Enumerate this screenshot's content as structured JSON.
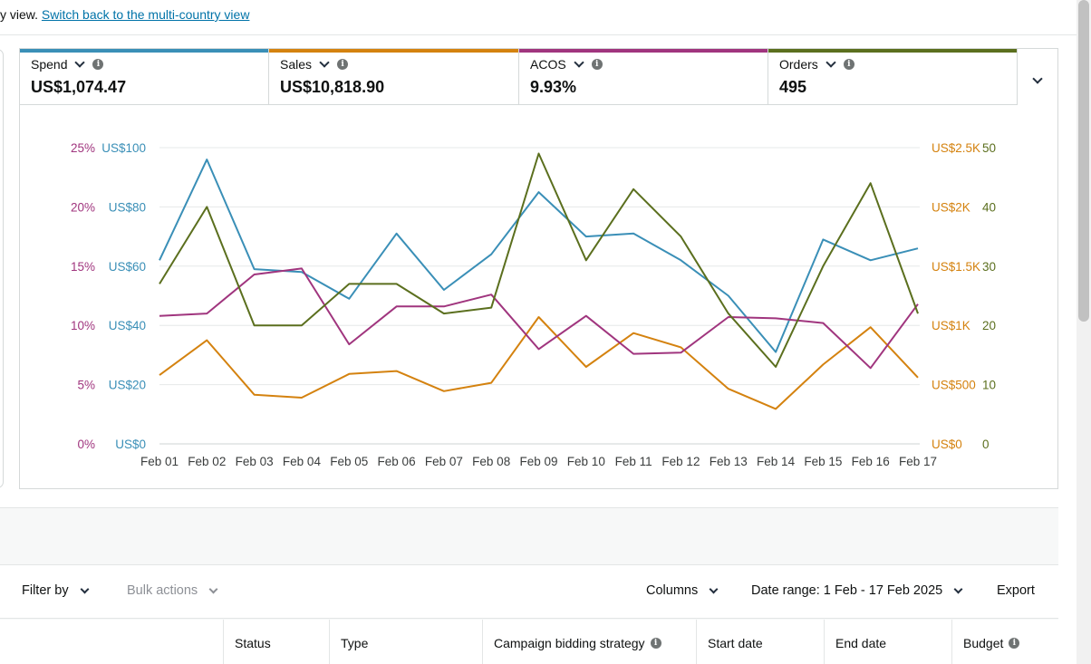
{
  "notice": {
    "prefix": "y view. ",
    "link": "Switch back to the multi-country view"
  },
  "metrics": [
    {
      "label": "Spend",
      "value": "US$1,074.47",
      "color": "#3a8fb7"
    },
    {
      "label": "Sales",
      "value": "US$10,818.90",
      "color": "#d4820f"
    },
    {
      "label": "ACOS",
      "value": "9.93%",
      "color": "#a0357e"
    },
    {
      "label": "Orders",
      "value": "495",
      "color": "#5b6f1e"
    }
  ],
  "chart_data": {
    "type": "line",
    "categories": [
      "Feb 01",
      "Feb 02",
      "Feb 03",
      "Feb 04",
      "Feb 05",
      "Feb 06",
      "Feb 07",
      "Feb 08",
      "Feb 09",
      "Feb 10",
      "Feb 11",
      "Feb 12",
      "Feb 13",
      "Feb 14",
      "Feb 15",
      "Feb 16",
      "Feb 17"
    ],
    "axes": {
      "acos": {
        "ticks": [
          "25%",
          "20%",
          "15%",
          "10%",
          "5%",
          "0%"
        ],
        "range": [
          0,
          25
        ],
        "color": "#a0357e",
        "side": "left"
      },
      "spend": {
        "ticks": [
          "US$100",
          "US$80",
          "US$60",
          "US$40",
          "US$20",
          "US$0"
        ],
        "range": [
          0,
          100
        ],
        "color": "#3a8fb7",
        "side": "left"
      },
      "sales": {
        "ticks": [
          "US$2.5K",
          "US$2K",
          "US$1.5K",
          "US$1K",
          "US$500",
          "US$0"
        ],
        "range": [
          0,
          2500
        ],
        "color": "#d4820f",
        "side": "right"
      },
      "orders": {
        "ticks": [
          "50",
          "40",
          "30",
          "20",
          "10",
          "0"
        ],
        "range": [
          0,
          50
        ],
        "color": "#5b6f1e",
        "side": "right"
      }
    },
    "series": [
      {
        "name": "Spend",
        "axis": "spend",
        "color": "#3a8fb7",
        "values": [
          62,
          96,
          59,
          58,
          49,
          71,
          52,
          64,
          85,
          70,
          71,
          62,
          50,
          31,
          69,
          62,
          66
        ]
      },
      {
        "name": "Sales",
        "axis": "sales",
        "color": "#d4820f",
        "values": [
          580,
          875,
          415,
          390,
          590,
          615,
          445,
          515,
          1070,
          650,
          935,
          815,
          465,
          295,
          670,
          985,
          560
        ]
      },
      {
        "name": "ACOS",
        "axis": "acos",
        "color": "#a0357e",
        "values": [
          10.8,
          11.0,
          14.3,
          14.8,
          8.4,
          11.6,
          11.6,
          12.6,
          8.0,
          10.8,
          7.6,
          7.7,
          10.7,
          10.6,
          10.2,
          6.4,
          11.8
        ]
      },
      {
        "name": "Orders",
        "axis": "orders",
        "color": "#5b6f1e",
        "values": [
          27,
          40,
          20,
          20,
          27,
          27,
          22,
          23,
          49,
          31,
          43,
          35,
          22,
          13,
          30,
          44,
          22
        ]
      }
    ],
    "grid": true
  },
  "toolbar": {
    "filter_by": "Filter by",
    "bulk_actions": "Bulk actions",
    "columns": "Columns",
    "date_range": "Date range: 1 Feb - 17 Feb 2025",
    "export": "Export"
  },
  "table_headers": [
    {
      "label": "Status",
      "info": false
    },
    {
      "label": "Type",
      "info": false
    },
    {
      "label": "Campaign bidding strategy",
      "info": true
    },
    {
      "label": "Start date",
      "info": false
    },
    {
      "label": "End date",
      "info": false
    },
    {
      "label": "Budget",
      "info": true
    }
  ]
}
